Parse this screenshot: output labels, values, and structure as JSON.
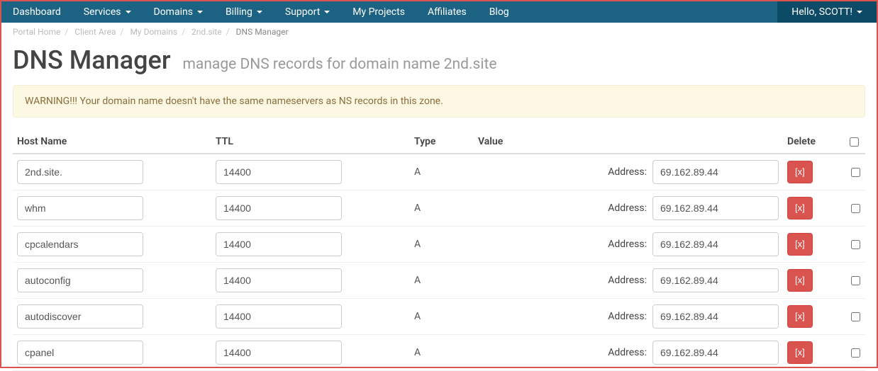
{
  "nav": {
    "items": [
      {
        "label": "Dashboard",
        "dropdown": false
      },
      {
        "label": "Services",
        "dropdown": true
      },
      {
        "label": "Domains",
        "dropdown": true
      },
      {
        "label": "Billing",
        "dropdown": true
      },
      {
        "label": "Support",
        "dropdown": true
      },
      {
        "label": "My Projects",
        "dropdown": false
      },
      {
        "label": "Affiliates",
        "dropdown": false
      },
      {
        "label": "Blog",
        "dropdown": false
      }
    ],
    "greeting": "Hello, SCOTT!"
  },
  "breadcrumb": {
    "items": [
      "Portal Home",
      "Client Area",
      "My Domains",
      "2nd.site",
      "DNS Manager"
    ]
  },
  "page": {
    "title": "DNS Manager",
    "subtitle": "manage DNS records for domain name 2nd.site"
  },
  "alert": {
    "text": "WARNING!!! Your domain name doesn't have the same nameservers as NS records in this zone."
  },
  "table": {
    "headers": {
      "host": "Host Name",
      "ttl": "TTL",
      "type": "Type",
      "value": "Value",
      "delete": "Delete"
    },
    "address_label": "Address:",
    "delete_btn": "[x]",
    "rows": [
      {
        "host": "2nd.site.",
        "ttl": "14400",
        "type": "A",
        "value": "69.162.89.44"
      },
      {
        "host": "whm",
        "ttl": "14400",
        "type": "A",
        "value": "69.162.89.44"
      },
      {
        "host": "cpcalendars",
        "ttl": "14400",
        "type": "A",
        "value": "69.162.89.44"
      },
      {
        "host": "autoconfig",
        "ttl": "14400",
        "type": "A",
        "value": "69.162.89.44"
      },
      {
        "host": "autodiscover",
        "ttl": "14400",
        "type": "A",
        "value": "69.162.89.44"
      },
      {
        "host": "cpanel",
        "ttl": "14400",
        "type": "A",
        "value": "69.162.89.44"
      }
    ]
  },
  "colors": {
    "navbar_bg": "#1b6283",
    "navbar_dark": "#0d4a66",
    "border_red": "#d9534f",
    "alert_bg": "#fcf8e3",
    "alert_border": "#f3eed1",
    "alert_text": "#8a6d3b",
    "delete_btn_bg": "#d9534f",
    "delete_btn_border": "#d43f3a"
  }
}
